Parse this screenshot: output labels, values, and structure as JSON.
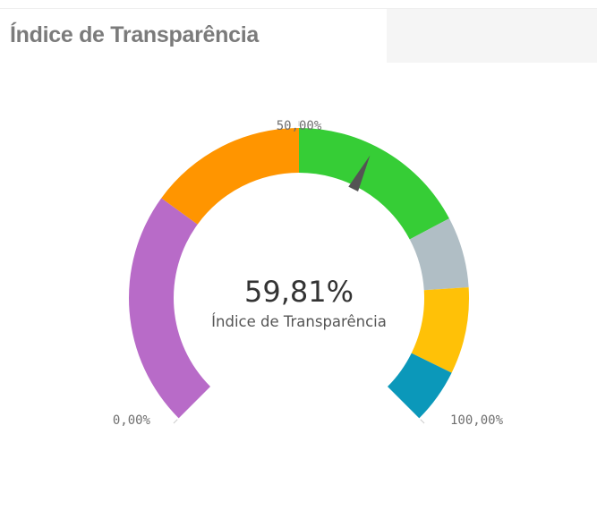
{
  "panel": {
    "title": "Índice de Transparência"
  },
  "chart_data": {
    "type": "gauge",
    "min": 0,
    "max": 100,
    "value": 59.81,
    "value_label": "59,81%",
    "measure_label": "Índice de Transparência",
    "tick_labels": {
      "min": "0,00%",
      "mid": "50,00%",
      "max": "100,00%"
    },
    "segments": [
      {
        "from": 0,
        "to": 30,
        "color": "#b86bc8"
      },
      {
        "from": 30,
        "to": 50,
        "color": "#ff9500"
      },
      {
        "from": 50,
        "to": 73,
        "color": "#36cd36"
      },
      {
        "from": 73,
        "to": 82,
        "color": "#b0bec5"
      },
      {
        "from": 82,
        "to": 93,
        "color": "#ffc107"
      },
      {
        "from": 93,
        "to": 100,
        "color": "#0b98ba"
      }
    ],
    "needle_color": "#545454"
  }
}
